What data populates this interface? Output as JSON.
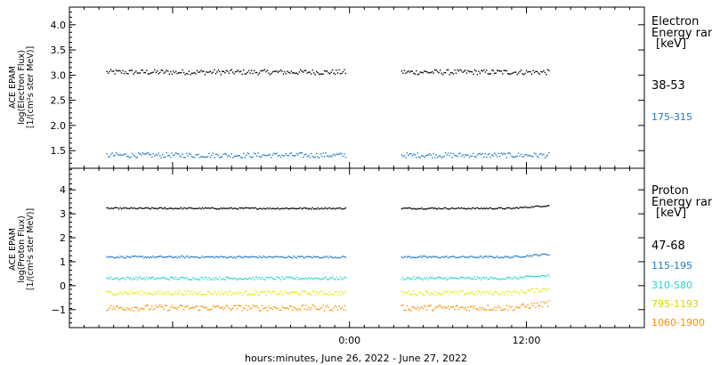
{
  "chart_data": [
    {
      "type": "scatter",
      "instrument_label": "ACE EPAM",
      "ylabel": "log(Electron Flux)",
      "yunits": "[1/(cm²s ster MeV)]",
      "ylim": [
        1.15,
        4.35
      ],
      "yticks": [
        "1.5",
        "2.0",
        "2.5",
        "3.0",
        "3.5",
        "4.0"
      ],
      "side_title_1": "Electron",
      "side_title_2": "Energy ran",
      "side_units": "[keV]",
      "series": [
        {
          "name": "38-53",
          "color": "#000000",
          "base": 3.07,
          "noise": 0.05,
          "segments": [
            [
              -16.5,
              -0.3
            ],
            [
              3.5,
              13.5
            ]
          ]
        },
        {
          "name": "175-315",
          "color": "#1f78c8",
          "base": 1.42,
          "noise": 0.05,
          "segments": [
            [
              -16.5,
              -0.3
            ],
            [
              3.5,
              13.5
            ]
          ]
        }
      ]
    },
    {
      "type": "scatter",
      "instrument_label": "ACE EPAM",
      "ylabel": "log(Proton Flux)",
      "yunits": "[1/(cm²s ster MeV)]",
      "ylim": [
        -1.75,
        4.9
      ],
      "yticks": [
        "−1",
        "0",
        "1",
        "2",
        "3",
        "4"
      ],
      "side_title_1": "Proton",
      "side_title_2": "Energy ran",
      "side_units": "[keV]",
      "series": [
        {
          "name": "47-68",
          "color": "#000000",
          "base": 3.25,
          "noise": 0.03,
          "segments": [
            [
              -16.5,
              -0.3
            ],
            [
              3.5,
              13.5
            ]
          ]
        },
        {
          "name": "115-195",
          "color": "#1f78c8",
          "base": 1.22,
          "noise": 0.04,
          "segments": [
            [
              -16.5,
              -0.3
            ],
            [
              3.5,
              13.5
            ]
          ]
        },
        {
          "name": "310-580",
          "color": "#20d6c8",
          "base": 0.33,
          "noise": 0.06,
          "segments": [
            [
              -16.5,
              -0.3
            ],
            [
              3.5,
              13.5
            ]
          ]
        },
        {
          "name": "795-1193",
          "color": "#e6e600",
          "base": -0.28,
          "noise": 0.09,
          "segments": [
            [
              -16.5,
              -0.3
            ],
            [
              3.5,
              13.5
            ]
          ]
        },
        {
          "name": "1060-1900",
          "color": "#ff8c00",
          "base": -0.9,
          "noise": 0.12,
          "segments": [
            [
              -16.5,
              -0.3
            ],
            [
              3.5,
              13.5
            ]
          ]
        }
      ]
    }
  ],
  "x_axis": {
    "label": "hours:minutes, June 26, 2022 - June 27, 2022",
    "range_hours": [
      -19,
      20
    ],
    "ticks": [
      {
        "h": 0,
        "label": "0:00"
      },
      {
        "h": 12,
        "label": "12:00"
      }
    ]
  }
}
